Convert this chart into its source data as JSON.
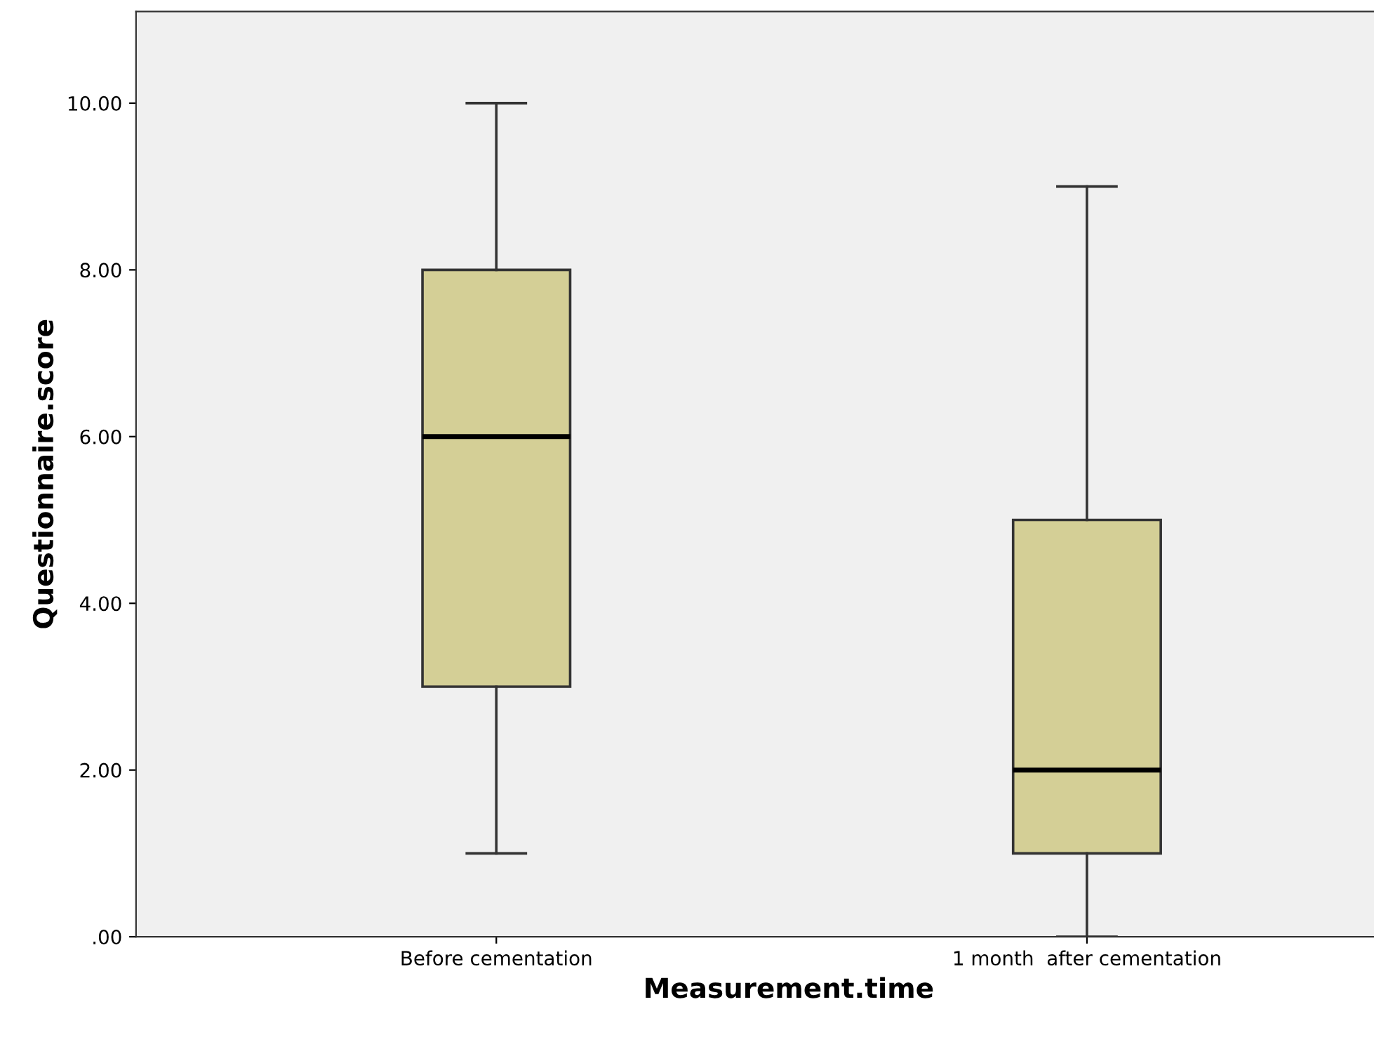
{
  "chart_data": {
    "type": "box",
    "xlabel": "Measurement.time",
    "ylabel": "Questionnaire.score",
    "categories": [
      "Before cementation",
      "1 month  after cementation"
    ],
    "series": [
      {
        "color": "#d4cf96",
        "boxes": [
          {
            "low": 1,
            "q1": 3,
            "median": 6,
            "q3": 8,
            "high": 10
          },
          {
            "low": 0,
            "q1": 1,
            "median": 2,
            "q3": 5,
            "high": 9
          }
        ]
      }
    ],
    "ylim": [
      0,
      11.1
    ],
    "yticks": [
      {
        "value": 0,
        "label": ".00"
      },
      {
        "value": 2,
        "label": "2.00"
      },
      {
        "value": 4,
        "label": "4.00"
      },
      {
        "value": 6,
        "label": "6.00"
      },
      {
        "value": 8,
        "label": "8.00"
      },
      {
        "value": 10,
        "label": "10.00"
      }
    ],
    "grid": false
  }
}
